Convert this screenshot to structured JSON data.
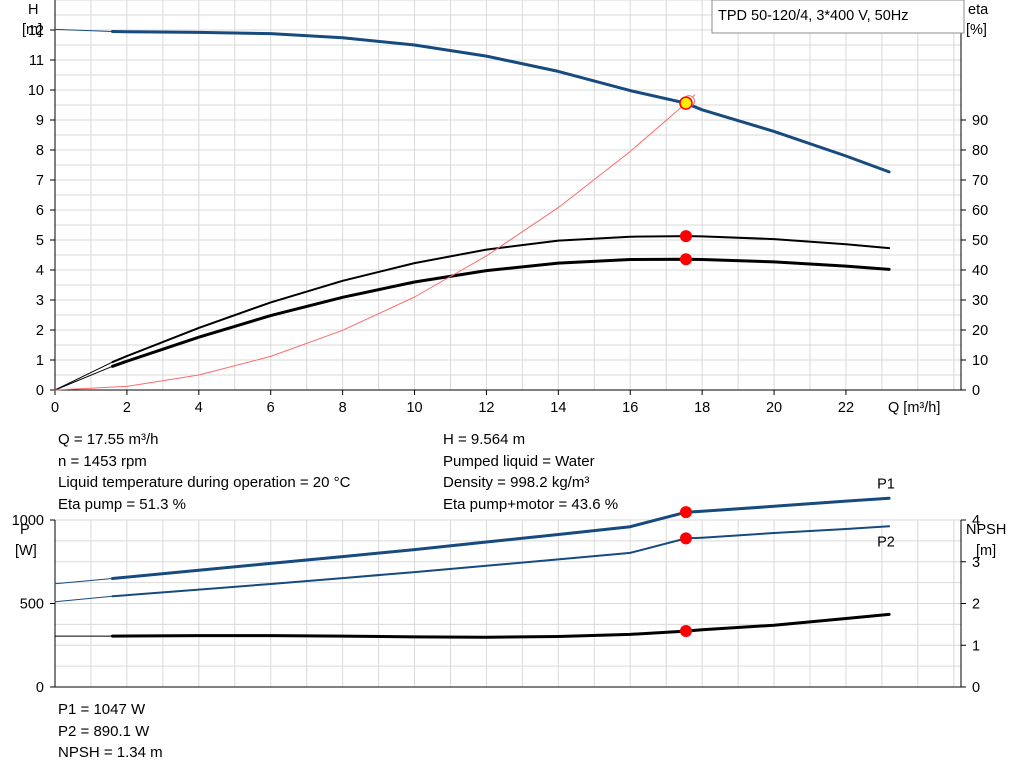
{
  "colors": {
    "blue": "#174a7e",
    "red": "#ff0000",
    "efficiency_line": "#ff6a6a",
    "grid": "#d9d9d9",
    "marker_fill": "#ffee00"
  },
  "info_top_left": [
    "Q = 17.55 m³/h",
    "n = 1453 rpm",
    "Liquid temperature during operation = 20 °C",
    "Eta pump = 51.3 %"
  ],
  "info_top_right": [
    "H = 9.564 m",
    "Pumped liquid = Water",
    "Density = 998.2 kg/m³",
    "Eta pump+motor = 43.6 %"
  ],
  "info_bottom": [
    "P1 = 1047 W",
    "P2 = 890.1 W",
    "NPSH = 1.34 m"
  ],
  "chart_data": [
    {
      "type": "line",
      "legend": "TPD 50-120/4, 3*400 V, 50Hz",
      "xlabel": "Q [m³/h]",
      "ylabel": [
        "H",
        "[m]"
      ],
      "y2label": [
        "eta",
        "[%]"
      ],
      "xlim": [
        0,
        25.2
      ],
      "ylim": [
        0,
        13
      ],
      "y2lim": [
        0,
        130
      ],
      "xticks": [
        0,
        2,
        4,
        6,
        8,
        10,
        12,
        14,
        16,
        18,
        20,
        22
      ],
      "yticks": [
        0,
        1,
        2,
        3,
        4,
        5,
        6,
        7,
        8,
        9,
        10,
        11,
        12
      ],
      "y2ticks": [
        0,
        10,
        20,
        30,
        40,
        50,
        60,
        70,
        80,
        90
      ],
      "grid": true,
      "operating_point": {
        "q": 17.55,
        "h": 9.564,
        "eta_pump": 51.3,
        "eta_pump_motor": 43.6
      },
      "series": [
        {
          "key": "H",
          "axis": "y",
          "color": "#174a7e",
          "width": 3,
          "x": [
            1.6,
            2,
            4,
            6,
            8,
            10,
            12,
            14,
            16,
            17.55,
            18,
            20,
            22,
            23.2
          ],
          "y": [
            11.95,
            11.94,
            11.92,
            11.88,
            11.74,
            11.5,
            11.13,
            10.62,
            9.98,
            9.56,
            9.34,
            8.62,
            7.8,
            7.27
          ]
        },
        {
          "key": "H_ext",
          "axis": "y",
          "color": "#174a7e",
          "width": 1,
          "x": [
            0,
            1.6
          ],
          "y": [
            12.02,
            11.95
          ]
        },
        {
          "key": "eta_pump",
          "axis": "y2",
          "color": "#000000",
          "width": 2,
          "x": [
            1.6,
            2,
            4,
            6,
            8,
            10,
            12,
            14,
            16,
            17.55,
            18,
            20,
            22,
            23.2
          ],
          "y": [
            9.3,
            11.3,
            20.7,
            29.2,
            36.4,
            42.3,
            46.8,
            49.8,
            51.1,
            51.3,
            51.2,
            50.3,
            48.6,
            47.3
          ]
        },
        {
          "key": "eta_pump_motor",
          "axis": "y2",
          "color": "#000000",
          "width": 3,
          "x": [
            1.6,
            2,
            4,
            6,
            8,
            10,
            12,
            14,
            16,
            17.55,
            18,
            20,
            22,
            23.2
          ],
          "y": [
            7.9,
            9.6,
            17.6,
            24.8,
            30.9,
            36,
            39.8,
            42.3,
            43.5,
            43.6,
            43.5,
            42.7,
            41.3,
            40.2
          ]
        },
        {
          "key": "eta_pump_ext",
          "axis": "y2",
          "color": "#000000",
          "width": 1,
          "x": [
            0,
            1.6
          ],
          "y": [
            0,
            9.3
          ]
        },
        {
          "key": "eta_pump_motor_ext",
          "axis": "y2",
          "color": "#000000",
          "width": 1,
          "x": [
            0,
            1.6
          ],
          "y": [
            0,
            7.9
          ]
        },
        {
          "key": "system_curve",
          "axis": "y",
          "color": "#ff6a6a",
          "width": 1,
          "x": [
            0,
            2,
            4,
            6,
            8,
            10,
            12,
            14,
            16,
            17.55,
            17.8
          ],
          "y": [
            0,
            0.12,
            0.5,
            1.12,
            1.99,
            3.1,
            4.47,
            6.08,
            7.95,
            9.56,
            9.84
          ]
        }
      ],
      "markers": [
        {
          "x": 17.55,
          "y": 51.3,
          "axis": "y2",
          "style": "red"
        },
        {
          "x": 17.55,
          "y": 43.6,
          "axis": "y2",
          "style": "red"
        },
        {
          "x": 17.55,
          "y": 9.564,
          "axis": "y",
          "style": "yellow"
        }
      ]
    },
    {
      "type": "line",
      "ylabel": [
        "P",
        "[W]"
      ],
      "y2label": [
        "NPSH",
        "[m]"
      ],
      "xlim": [
        0,
        25.2
      ],
      "ylim": [
        0,
        1000
      ],
      "y2lim": [
        0,
        4
      ],
      "yticks": [
        0,
        500,
        1000
      ],
      "y2ticks": [
        0,
        1,
        2,
        3,
        4
      ],
      "grid": true,
      "series": [
        {
          "key": "P1",
          "axis": "y",
          "color": "#174a7e",
          "width": 3,
          "label": "P1",
          "x": [
            1.6,
            4,
            6,
            8,
            10,
            12,
            14,
            16,
            17.55,
            18,
            20,
            22,
            23.2
          ],
          "y": [
            650,
            699,
            740,
            781,
            823,
            868,
            913,
            960,
            1047,
            1052,
            1082,
            1113,
            1130
          ]
        },
        {
          "key": "P2",
          "axis": "y",
          "color": "#174a7e",
          "width": 2,
          "label": "P2",
          "x": [
            1.6,
            4,
            6,
            8,
            10,
            12,
            14,
            16,
            17.55,
            18,
            20,
            22,
            23.2
          ],
          "y": [
            543,
            583,
            617,
            652,
            688,
            726,
            764,
            803,
            890.1,
            894,
            922,
            946,
            962
          ]
        },
        {
          "key": "NPSH",
          "axis": "y2",
          "color": "#000000",
          "width": 3,
          "x": [
            1.6,
            4,
            6,
            8,
            10,
            12,
            14,
            16,
            17.55,
            18,
            20,
            22,
            23.2
          ],
          "y": [
            1.22,
            1.23,
            1.23,
            1.22,
            1.2,
            1.19,
            1.21,
            1.26,
            1.34,
            1.37,
            1.48,
            1.64,
            1.74
          ]
        },
        {
          "key": "P1_ext",
          "axis": "y",
          "color": "#174a7e",
          "width": 1,
          "x": [
            0,
            1.6
          ],
          "y": [
            618,
            650
          ]
        },
        {
          "key": "P2_ext",
          "axis": "y",
          "color": "#174a7e",
          "width": 1,
          "x": [
            0,
            1.6
          ],
          "y": [
            511,
            543
          ]
        },
        {
          "key": "NPSH_ext",
          "axis": "y2",
          "color": "#000000",
          "width": 1,
          "x": [
            0,
            1.6
          ],
          "y": [
            1.22,
            1.22
          ]
        }
      ],
      "markers": [
        {
          "x": 17.55,
          "y": 1047,
          "axis": "y",
          "style": "red"
        },
        {
          "x": 17.55,
          "y": 890.1,
          "axis": "y",
          "style": "red"
        },
        {
          "x": 17.55,
          "y": 1.34,
          "axis": "y2",
          "style": "red"
        }
      ]
    }
  ]
}
